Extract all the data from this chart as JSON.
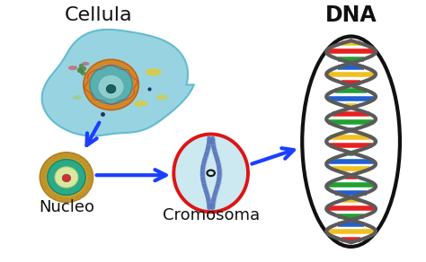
{
  "bg_color": "#ffffff",
  "title_cellula": "Cellula",
  "title_dna": "DNA",
  "label_nucleo": "Nucleo",
  "label_cromosoma": "Cromosoma",
  "cell_color": "#8dcfdf",
  "arrow_color": "#1a3fff",
  "label_fontsize": 13,
  "dna_title_fontsize": 17,
  "cellula_fontsize": 16
}
